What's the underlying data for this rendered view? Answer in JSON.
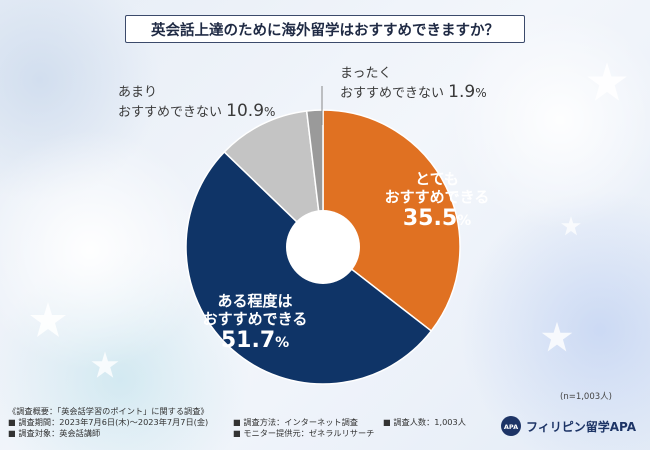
{
  "title": "英会話上達のために海外留学はおすすめできますか？",
  "chart_data": {
    "type": "pie",
    "donut": true,
    "start": "top",
    "direction": "clockwise",
    "slices": [
      {
        "label_line1": "とても",
        "label_line2": "おすすめできる",
        "value": 35.5,
        "color": "#e07122"
      },
      {
        "label_line1": "ある程度は",
        "label_line2": "おすすめできる",
        "value": 51.7,
        "color": "#0f3467"
      },
      {
        "label_line1": "あまり",
        "label_line2": "おすすめできない",
        "value": 10.9,
        "color": "#c4c4c4"
      },
      {
        "label_line1": "まったく",
        "label_line2": "おすすめできない",
        "value": 1.9,
        "color": "#9a9a9a"
      }
    ],
    "unit": "%"
  },
  "sample_size": "(n=1,003人)",
  "footer": {
    "summary": "《調査概要：「英会話学習のポイント」に関する調査》",
    "period": "■ 調査期間：2023年7月6日(木)～2023年7月7日(金)",
    "target": "■ 調査対象：英会話講師",
    "method": "■ 調査方法：インターネット調査",
    "provider": "■ モニター提供元：ゼネラルリサーチ",
    "people": "■ 調査人数：1,003人"
  },
  "logo": {
    "mark": "APA",
    "text": "フィリピン留学APA",
    "color": "#1d3466"
  }
}
